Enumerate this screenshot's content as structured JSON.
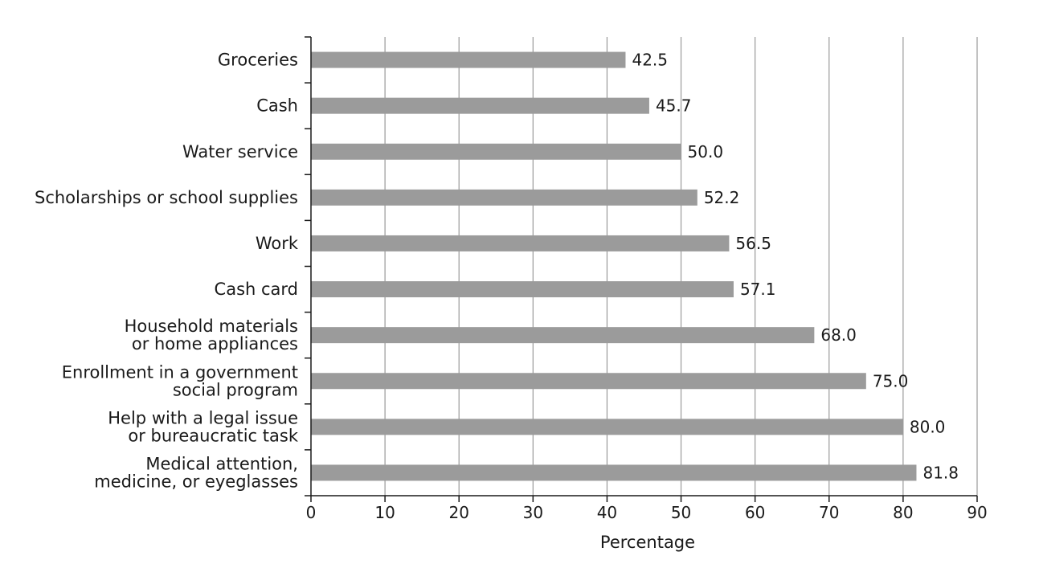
{
  "chart_data": {
    "type": "bar",
    "orientation": "horizontal",
    "categories": [
      [
        "Groceries"
      ],
      [
        "Cash"
      ],
      [
        "Water service"
      ],
      [
        "Scholarships or school supplies"
      ],
      [
        "Work"
      ],
      [
        "Cash card"
      ],
      [
        "Household materials",
        "or home appliances"
      ],
      [
        "Enrollment in a government",
        "social program"
      ],
      [
        "Help with a legal issue",
        "or bureaucratic task"
      ],
      [
        "Medical attention,",
        "medicine, or eyeglasses"
      ]
    ],
    "values": [
      42.5,
      45.7,
      50.0,
      52.2,
      56.5,
      57.1,
      68.0,
      75.0,
      80.0,
      81.8
    ],
    "value_labels": [
      "42.5",
      "45.7",
      "50.0",
      "52.2",
      "56.5",
      "57.1",
      "68.0",
      "75.0",
      "80.0",
      "81.8"
    ],
    "title": "",
    "xlabel": "Percentage",
    "ylabel": "",
    "xlim": [
      0,
      90
    ],
    "xticks": [
      0,
      10,
      20,
      30,
      40,
      50,
      60,
      70,
      80,
      90
    ],
    "grid": "vertical",
    "legend": "none",
    "bar_color": "#9b9b9b",
    "grid_color": "#9a9a9a",
    "axis_color": "#1a1a1a"
  }
}
